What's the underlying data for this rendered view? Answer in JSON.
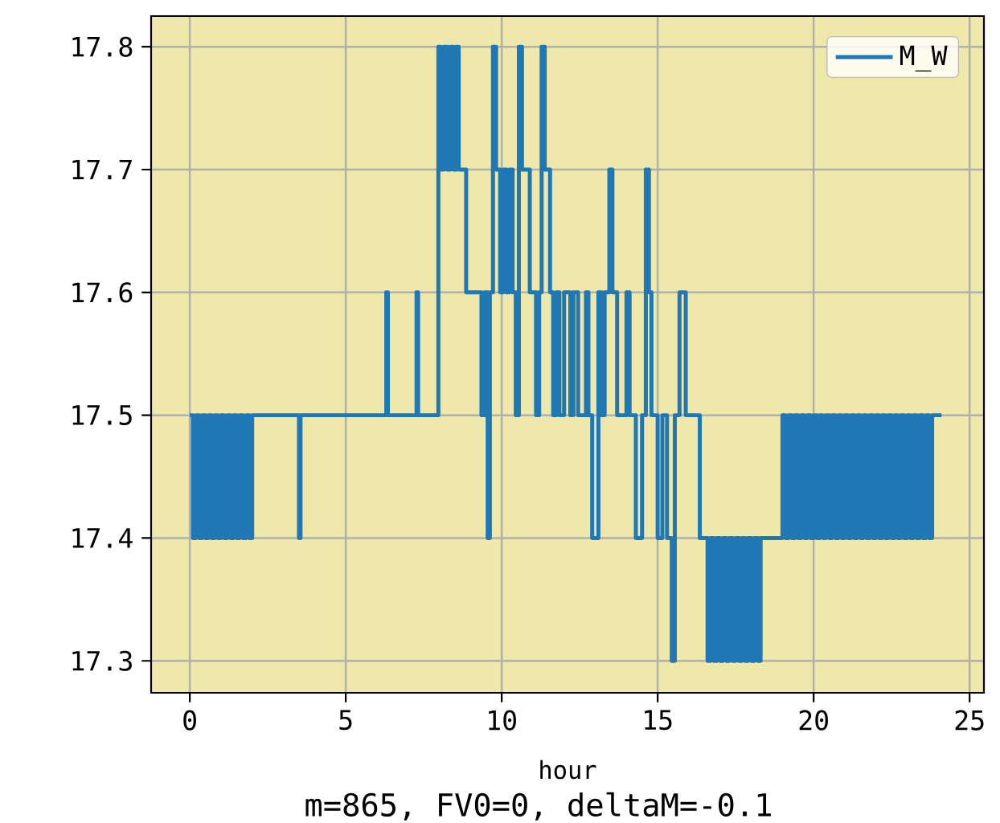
{
  "chart_data": {
    "type": "step",
    "xlabel": "hour",
    "annotations": [
      "m=865, FV0=0, deltaM=-0.1"
    ],
    "xlim": [
      -1.24,
      25.46
    ],
    "ylim": [
      17.274,
      17.825
    ],
    "xticks": [
      0,
      5,
      10,
      15,
      20,
      25
    ],
    "yticks": [
      17.3,
      17.4,
      17.5,
      17.6,
      17.7,
      17.8
    ],
    "grid": true,
    "legend": "top right",
    "series": [
      {
        "name": "M_W",
        "color": "#1f77b4",
        "x": [
          0.0,
          0.1,
          0.2,
          0.3,
          0.4,
          0.5,
          0.6,
          0.7,
          0.8,
          0.9,
          1.0,
          1.1,
          1.2,
          1.3,
          1.4,
          1.5,
          1.6,
          1.7,
          1.8,
          1.9,
          2.0,
          3.5,
          3.55,
          6.3,
          6.35,
          7.27,
          7.32,
          7.97,
          8.05,
          8.15,
          8.25,
          8.35,
          8.45,
          8.55,
          8.62,
          8.86,
          9.35,
          9.45,
          9.55,
          9.62,
          9.72,
          9.82,
          9.95,
          10.05,
          10.15,
          10.25,
          10.35,
          10.45,
          10.55,
          10.65,
          10.9,
          11.1,
          11.2,
          11.28,
          11.38,
          11.55,
          11.65,
          11.75,
          11.85,
          12.0,
          12.2,
          12.3,
          12.45,
          12.7,
          12.78,
          12.9,
          13.1,
          13.2,
          13.3,
          13.45,
          13.55,
          13.7,
          14.0,
          14.1,
          14.3,
          14.5,
          14.62,
          14.72,
          14.8,
          15.0,
          15.15,
          15.3,
          15.45,
          15.55,
          15.7,
          15.9,
          16.35,
          16.6,
          16.7,
          16.8,
          16.9,
          17.0,
          17.1,
          17.2,
          17.3,
          17.4,
          17.5,
          17.6,
          17.7,
          17.8,
          17.9,
          18.0,
          18.1,
          18.2,
          18.3,
          19.0,
          19.1,
          19.2,
          19.3,
          19.4,
          19.5,
          19.6,
          19.7,
          19.8,
          19.9,
          20.0,
          20.1,
          20.2,
          20.3,
          20.4,
          20.5,
          20.6,
          20.7,
          20.8,
          20.9,
          21.0,
          21.1,
          21.2,
          21.3,
          21.4,
          21.5,
          21.6,
          21.7,
          21.8,
          21.9,
          22.0,
          22.1,
          22.2,
          22.3,
          22.4,
          22.5,
          22.6,
          22.7,
          22.8,
          22.9,
          23.0,
          23.1,
          23.2,
          23.3,
          23.4,
          23.5,
          23.6,
          23.7,
          23.8,
          24.1
        ],
        "values": [
          17.5,
          17.4,
          17.5,
          17.4,
          17.5,
          17.4,
          17.5,
          17.4,
          17.5,
          17.4,
          17.5,
          17.4,
          17.5,
          17.4,
          17.5,
          17.4,
          17.5,
          17.4,
          17.5,
          17.4,
          17.5,
          17.4,
          17.5,
          17.6,
          17.5,
          17.6,
          17.5,
          17.8,
          17.7,
          17.8,
          17.7,
          17.8,
          17.7,
          17.8,
          17.7,
          17.6,
          17.5,
          17.6,
          17.4,
          17.6,
          17.8,
          17.7,
          17.6,
          17.7,
          17.6,
          17.7,
          17.6,
          17.5,
          17.8,
          17.7,
          17.6,
          17.5,
          17.6,
          17.8,
          17.7,
          17.6,
          17.5,
          17.6,
          17.5,
          17.6,
          17.5,
          17.6,
          17.5,
          17.6,
          17.5,
          17.4,
          17.6,
          17.5,
          17.6,
          17.7,
          17.6,
          17.5,
          17.6,
          17.5,
          17.4,
          17.5,
          17.7,
          17.6,
          17.5,
          17.4,
          17.5,
          17.4,
          17.3,
          17.5,
          17.6,
          17.5,
          17.4,
          17.3,
          17.4,
          17.3,
          17.4,
          17.3,
          17.4,
          17.3,
          17.4,
          17.3,
          17.4,
          17.3,
          17.4,
          17.3,
          17.4,
          17.3,
          17.4,
          17.3,
          17.4,
          17.5,
          17.4,
          17.5,
          17.4,
          17.5,
          17.4,
          17.5,
          17.4,
          17.5,
          17.4,
          17.5,
          17.4,
          17.5,
          17.4,
          17.5,
          17.4,
          17.5,
          17.4,
          17.5,
          17.4,
          17.5,
          17.4,
          17.5,
          17.4,
          17.5,
          17.4,
          17.5,
          17.4,
          17.5,
          17.4,
          17.5,
          17.4,
          17.5,
          17.4,
          17.5,
          17.4,
          17.5,
          17.4,
          17.5,
          17.4,
          17.5,
          17.4,
          17.5,
          17.4,
          17.5,
          17.4,
          17.5,
          17.4,
          17.5,
          17.5
        ]
      }
    ]
  }
}
